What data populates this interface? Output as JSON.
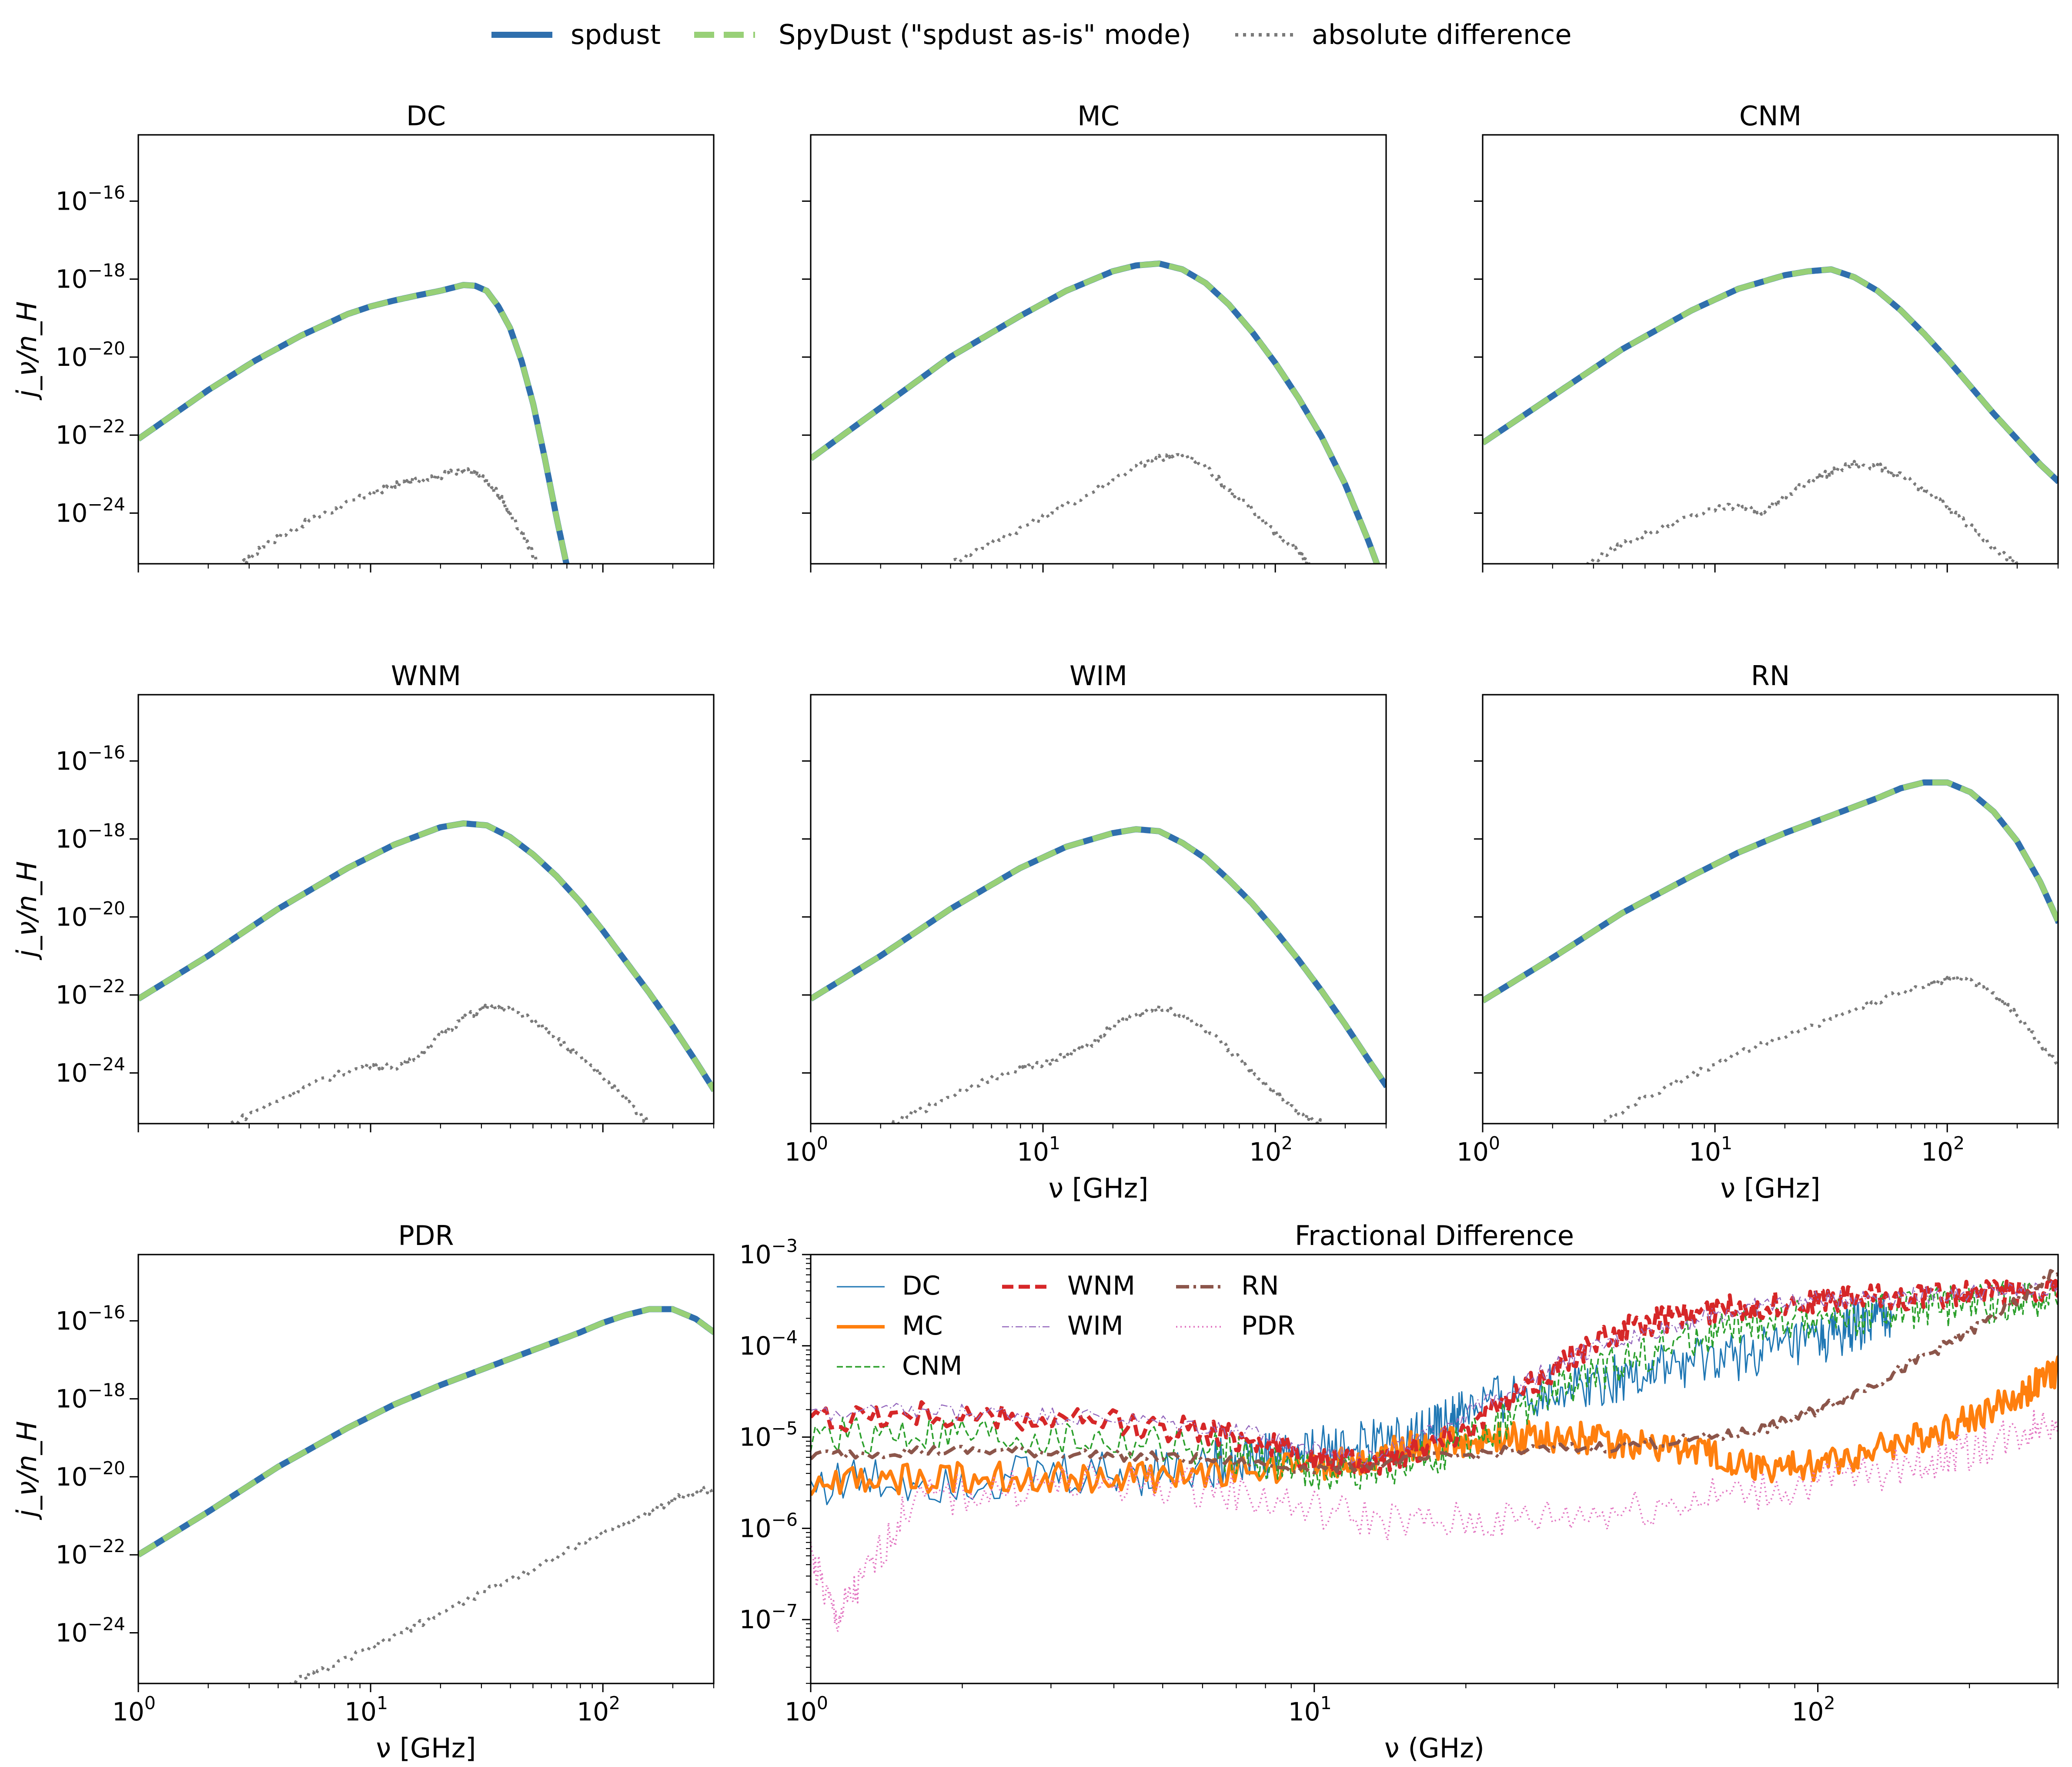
{
  "figure_legend": {
    "entries": [
      {
        "label": "spdust",
        "color": "#2f6fad",
        "style": "solid"
      },
      {
        "label": "SpyDust (\"spdust as-is\" mode)",
        "color": "#98d077",
        "style": "dashed"
      },
      {
        "label": "absolute difference",
        "color": "#7a7a7a",
        "style": "dotted"
      }
    ]
  },
  "colors": {
    "spdust": "#2f6fad",
    "spydust": "#98d077",
    "absdiff": "#7a7a7a",
    "DC": "#1f77b4",
    "MC": "#ff7f0e",
    "CNM": "#2ca02c",
    "WNM": "#d62728",
    "WIM": "#9467bd",
    "RN": "#8c564b",
    "PDR": "#e377c2"
  },
  "chart_data": [
    {
      "id": "DC",
      "type": "line",
      "title": "DC",
      "xlabel": "",
      "ylabel": "j_ν/n_H",
      "xscale": "log",
      "yscale": "log",
      "xlim": [
        1,
        300
      ],
      "ylim": [
        -25.3,
        -14.3
      ],
      "xticklabels_shown": false,
      "yticklabels_shown": true,
      "series": [
        {
          "name": "spdust",
          "log10_x": [
            0,
            0.3,
            0.5,
            0.7,
            0.9,
            1.0,
            1.1,
            1.2,
            1.3,
            1.4,
            1.45,
            1.5,
            1.55,
            1.6,
            1.65,
            1.7,
            1.75,
            1.8,
            1.85
          ],
          "log10_y": [
            -22.1,
            -20.85,
            -20.1,
            -19.45,
            -18.9,
            -18.7,
            -18.55,
            -18.42,
            -18.3,
            -18.15,
            -18.17,
            -18.3,
            -18.7,
            -19.25,
            -20.1,
            -21.2,
            -22.6,
            -24.1,
            -25.5
          ]
        },
        {
          "name": "absolute difference",
          "log10_x": [
            0.45,
            0.55,
            0.7,
            0.85,
            1.0,
            1.1,
            1.2,
            1.3,
            1.38,
            1.45,
            1.5,
            1.55,
            1.6,
            1.66,
            1.72
          ],
          "log10_y": [
            -25.3,
            -24.8,
            -24.3,
            -23.9,
            -23.5,
            -23.3,
            -23.15,
            -23.05,
            -22.9,
            -22.95,
            -23.2,
            -23.5,
            -24.0,
            -24.6,
            -25.3
          ]
        }
      ]
    },
    {
      "id": "MC",
      "type": "line",
      "title": "MC",
      "xlabel": "",
      "ylabel": "",
      "xscale": "log",
      "yscale": "log",
      "xlim": [
        1,
        300
      ],
      "ylim": [
        -25.3,
        -14.3
      ],
      "xticklabels_shown": false,
      "yticklabels_shown": false,
      "series": [
        {
          "name": "spdust",
          "log10_x": [
            0,
            0.3,
            0.6,
            0.9,
            1.1,
            1.3,
            1.4,
            1.5,
            1.6,
            1.7,
            1.8,
            1.9,
            2.0,
            2.1,
            2.2,
            2.3,
            2.4,
            2.45
          ],
          "log10_y": [
            -22.6,
            -21.3,
            -20.0,
            -18.95,
            -18.3,
            -17.8,
            -17.65,
            -17.6,
            -17.75,
            -18.1,
            -18.65,
            -19.35,
            -20.15,
            -21.05,
            -22.05,
            -23.25,
            -24.7,
            -25.5
          ]
        },
        {
          "name": "absolute difference",
          "log10_x": [
            0.6,
            0.8,
            1.0,
            1.2,
            1.4,
            1.5,
            1.6,
            1.7,
            1.8,
            1.9,
            2.0,
            2.1,
            2.15
          ],
          "log10_y": [
            -25.3,
            -24.7,
            -24.1,
            -23.5,
            -22.8,
            -22.6,
            -22.5,
            -22.8,
            -23.4,
            -23.9,
            -24.5,
            -25.0,
            -25.3
          ]
        }
      ]
    },
    {
      "id": "CNM",
      "type": "line",
      "title": "CNM",
      "xlabel": "",
      "ylabel": "",
      "xscale": "log",
      "yscale": "log",
      "xlim": [
        1,
        300
      ],
      "ylim": [
        -25.3,
        -14.3
      ],
      "xticklabels_shown": false,
      "yticklabels_shown": false,
      "series": [
        {
          "name": "spdust",
          "log10_x": [
            0,
            0.3,
            0.6,
            0.9,
            1.1,
            1.3,
            1.4,
            1.5,
            1.6,
            1.7,
            1.8,
            1.9,
            2.0,
            2.1,
            2.2,
            2.3,
            2.4,
            2.48
          ],
          "log10_y": [
            -22.2,
            -21.0,
            -19.8,
            -18.8,
            -18.25,
            -17.9,
            -17.8,
            -17.75,
            -17.95,
            -18.3,
            -18.8,
            -19.4,
            -20.05,
            -20.75,
            -21.45,
            -22.1,
            -22.75,
            -23.2
          ]
        },
        {
          "name": "absolute difference",
          "log10_x": [
            0.45,
            0.6,
            0.8,
            1.0,
            1.1,
            1.2,
            1.3,
            1.4,
            1.5,
            1.6,
            1.7,
            1.8,
            1.9,
            2.0,
            2.1,
            2.2,
            2.3
          ],
          "log10_y": [
            -25.3,
            -24.8,
            -24.3,
            -23.9,
            -23.8,
            -23.95,
            -23.6,
            -23.2,
            -22.95,
            -22.75,
            -22.8,
            -23.05,
            -23.4,
            -23.85,
            -24.35,
            -24.9,
            -25.3
          ]
        }
      ]
    },
    {
      "id": "WNM",
      "type": "line",
      "title": "WNM",
      "xlabel": "",
      "ylabel": "j_ν/n_H",
      "xscale": "log",
      "yscale": "log",
      "xlim": [
        1,
        300
      ],
      "ylim": [
        -25.3,
        -14.3
      ],
      "xticklabels_shown": false,
      "yticklabels_shown": true,
      "series": [
        {
          "name": "spdust",
          "log10_x": [
            0,
            0.3,
            0.6,
            0.9,
            1.1,
            1.3,
            1.4,
            1.5,
            1.6,
            1.7,
            1.8,
            1.9,
            2.0,
            2.1,
            2.2,
            2.3,
            2.4,
            2.48
          ],
          "log10_y": [
            -22.1,
            -21.0,
            -19.8,
            -18.75,
            -18.15,
            -17.7,
            -17.6,
            -17.65,
            -17.95,
            -18.4,
            -18.95,
            -19.6,
            -20.35,
            -21.15,
            -21.95,
            -22.8,
            -23.7,
            -24.45
          ]
        },
        {
          "name": "absolute difference",
          "log10_x": [
            0.4,
            0.6,
            0.8,
            1.0,
            1.1,
            1.2,
            1.3,
            1.4,
            1.5,
            1.6,
            1.7,
            1.8,
            1.9,
            2.0,
            2.1,
            2.2
          ],
          "log10_y": [
            -25.3,
            -24.7,
            -24.15,
            -23.8,
            -23.85,
            -23.6,
            -23.05,
            -22.6,
            -22.3,
            -22.35,
            -22.65,
            -23.1,
            -23.6,
            -24.1,
            -24.7,
            -25.3
          ]
        }
      ]
    },
    {
      "id": "WIM",
      "type": "line",
      "title": "WIM",
      "xlabel": "ν [GHz]",
      "ylabel": "",
      "xscale": "log",
      "yscale": "log",
      "xlim": [
        1,
        300
      ],
      "ylim": [
        -25.3,
        -14.3
      ],
      "xticklabels_shown": true,
      "yticklabels_shown": false,
      "series": [
        {
          "name": "spdust",
          "log10_x": [
            0,
            0.3,
            0.6,
            0.9,
            1.1,
            1.3,
            1.4,
            1.5,
            1.6,
            1.7,
            1.8,
            1.9,
            2.0,
            2.1,
            2.2,
            2.3,
            2.4,
            2.48
          ],
          "log10_y": [
            -22.1,
            -21.0,
            -19.8,
            -18.75,
            -18.2,
            -17.85,
            -17.75,
            -17.8,
            -18.1,
            -18.5,
            -19.05,
            -19.65,
            -20.35,
            -21.1,
            -21.9,
            -22.75,
            -23.65,
            -24.35
          ]
        },
        {
          "name": "absolute difference",
          "log10_x": [
            0.35,
            0.5,
            0.7,
            0.9,
            1.0,
            1.1,
            1.2,
            1.3,
            1.4,
            1.5,
            1.6,
            1.7,
            1.8,
            1.9,
            2.0,
            2.1,
            2.2
          ],
          "log10_y": [
            -25.3,
            -24.9,
            -24.3,
            -23.9,
            -23.75,
            -23.55,
            -23.3,
            -22.8,
            -22.5,
            -22.35,
            -22.5,
            -22.9,
            -23.4,
            -23.95,
            -24.5,
            -25.0,
            -25.3
          ]
        }
      ]
    },
    {
      "id": "RN",
      "type": "line",
      "title": "RN",
      "xlabel": "ν [GHz]",
      "ylabel": "",
      "xscale": "log",
      "yscale": "log",
      "xlim": [
        1,
        300
      ],
      "ylim": [
        -25.3,
        -14.3
      ],
      "xticklabels_shown": true,
      "yticklabels_shown": false,
      "series": [
        {
          "name": "spdust",
          "log10_x": [
            0,
            0.3,
            0.6,
            0.9,
            1.1,
            1.3,
            1.5,
            1.7,
            1.8,
            1.9,
            2.0,
            2.1,
            2.2,
            2.3,
            2.4,
            2.45,
            2.48
          ],
          "log10_y": [
            -22.15,
            -21.05,
            -19.9,
            -18.95,
            -18.35,
            -17.85,
            -17.4,
            -16.95,
            -16.7,
            -16.55,
            -16.55,
            -16.8,
            -17.3,
            -18.05,
            -19.1,
            -19.75,
            -20.15
          ]
        },
        {
          "name": "absolute difference",
          "log10_x": [
            0.5,
            0.7,
            0.9,
            1.1,
            1.3,
            1.5,
            1.7,
            1.9,
            2.0,
            2.1,
            2.2,
            2.3,
            2.4,
            2.48
          ],
          "log10_y": [
            -25.3,
            -24.65,
            -24.05,
            -23.5,
            -23.05,
            -22.6,
            -22.15,
            -21.75,
            -21.6,
            -21.6,
            -21.95,
            -22.5,
            -23.25,
            -23.85
          ]
        }
      ]
    },
    {
      "id": "PDR",
      "type": "line",
      "title": "PDR",
      "xlabel": "ν [GHz]",
      "ylabel": "j_ν/n_H",
      "xscale": "log",
      "yscale": "log",
      "xlim": [
        1,
        300
      ],
      "ylim": [
        -25.3,
        -14.3
      ],
      "xticklabels_shown": true,
      "yticklabels_shown": true,
      "series": [
        {
          "name": "spdust",
          "log10_x": [
            0,
            0.3,
            0.6,
            0.9,
            1.1,
            1.3,
            1.5,
            1.7,
            1.9,
            2.0,
            2.1,
            2.2,
            2.3,
            2.4,
            2.48
          ],
          "log10_y": [
            -22.0,
            -20.9,
            -19.75,
            -18.75,
            -18.15,
            -17.65,
            -17.2,
            -16.75,
            -16.3,
            -16.05,
            -15.85,
            -15.7,
            -15.7,
            -15.95,
            -16.3
          ]
        },
        {
          "name": "absolute difference",
          "log10_x": [
            0.65,
            0.8,
            1.0,
            1.2,
            1.4,
            1.6,
            1.8,
            2.0,
            2.2,
            2.3,
            2.4,
            2.48
          ],
          "log10_y": [
            -25.3,
            -24.95,
            -24.4,
            -23.8,
            -23.2,
            -22.65,
            -22.05,
            -21.45,
            -20.9,
            -20.6,
            -20.35,
            -20.35
          ]
        }
      ]
    },
    {
      "id": "fractional",
      "type": "line",
      "title": "Fractional Difference",
      "xlabel": "ν (GHz)",
      "ylabel": "",
      "xscale": "log",
      "yscale": "log",
      "xlim": [
        1,
        300
      ],
      "ylim": [
        -7.7,
        -3.0
      ],
      "series": [
        {
          "name": "DC",
          "log10_x": [
            0,
            0.3,
            0.6,
            0.8,
            0.9,
            1.0,
            1.1,
            1.2,
            1.25,
            1.3,
            1.4,
            1.5,
            1.6,
            1.7,
            1.8,
            1.9,
            2.0,
            2.05,
            2.1,
            2.15
          ],
          "log10_y": [
            -5.5,
            -5.45,
            -5.4,
            -5.3,
            -5.2,
            -5.15,
            -5.1,
            -5.0,
            -4.9,
            -4.7,
            -4.55,
            -4.45,
            -4.35,
            -4.25,
            -4.15,
            -4.05,
            -3.95,
            -3.85,
            -3.75,
            -3.65
          ]
        },
        {
          "name": "MC",
          "log10_x": [
            0,
            0.2,
            0.4,
            0.6,
            0.8,
            1.0,
            1.1,
            1.2,
            1.3,
            1.4,
            1.5,
            1.6,
            1.7,
            1.8,
            1.9,
            2.0,
            2.1,
            2.2,
            2.3,
            2.4,
            2.48
          ],
          "log10_y": [
            -5.5,
            -5.45,
            -5.45,
            -5.45,
            -5.4,
            -5.3,
            -5.25,
            -5.1,
            -5.05,
            -5.0,
            -5.0,
            -5.05,
            -5.1,
            -5.2,
            -5.35,
            -5.3,
            -5.15,
            -5.0,
            -4.8,
            -4.55,
            -4.25
          ]
        },
        {
          "name": "CNM",
          "log10_x": [
            0,
            0.2,
            0.4,
            0.6,
            0.8,
            0.9,
            1.0,
            1.1,
            1.2,
            1.3,
            1.4,
            1.5,
            1.6,
            1.7,
            1.8,
            1.9,
            2.0,
            2.1,
            2.2,
            2.3,
            2.4,
            2.48
          ],
          "log10_y": [
            -5.0,
            -4.95,
            -5.0,
            -5.05,
            -5.15,
            -5.25,
            -5.4,
            -5.35,
            -5.3,
            -5.05,
            -4.75,
            -4.45,
            -4.2,
            -4.0,
            -3.85,
            -3.75,
            -3.7,
            -3.65,
            -3.6,
            -3.55,
            -3.5,
            -3.45
          ]
        },
        {
          "name": "WNM",
          "log10_x": [
            0,
            0.2,
            0.4,
            0.6,
            0.8,
            0.9,
            1.0,
            1.1,
            1.2,
            1.3,
            1.4,
            1.5,
            1.6,
            1.7,
            1.8,
            1.9,
            2.0,
            2.1,
            2.2,
            2.3,
            2.4,
            2.48
          ],
          "log10_y": [
            -4.8,
            -4.75,
            -4.8,
            -4.85,
            -4.95,
            -5.05,
            -5.25,
            -5.3,
            -5.15,
            -4.9,
            -4.55,
            -4.15,
            -3.85,
            -3.7,
            -3.6,
            -3.55,
            -3.5,
            -3.47,
            -3.45,
            -3.42,
            -3.4,
            -3.38
          ]
        },
        {
          "name": "WIM",
          "log10_x": [
            0,
            0.2,
            0.4,
            0.6,
            0.8,
            0.9,
            1.0,
            1.1,
            1.2,
            1.3,
            1.4,
            1.5,
            1.6,
            1.7,
            1.8,
            1.9,
            2.0,
            2.1,
            2.2,
            2.3,
            2.4,
            2.48
          ],
          "log10_y": [
            -4.75,
            -4.72,
            -4.75,
            -4.8,
            -4.9,
            -5.0,
            -5.15,
            -5.2,
            -5.05,
            -4.75,
            -4.45,
            -4.15,
            -3.95,
            -3.8,
            -3.65,
            -3.55,
            -3.5,
            -3.47,
            -3.45,
            -3.42,
            -3.4,
            -3.38
          ]
        },
        {
          "name": "RN",
          "log10_x": [
            0,
            0.2,
            0.4,
            0.6,
            0.8,
            1.0,
            1.2,
            1.4,
            1.6,
            1.8,
            1.9,
            2.0,
            2.1,
            2.2,
            2.3,
            2.4,
            2.48
          ],
          "log10_y": [
            -5.2,
            -5.15,
            -5.15,
            -5.2,
            -5.25,
            -5.35,
            -5.25,
            -5.15,
            -5.1,
            -5.0,
            -4.9,
            -4.7,
            -4.45,
            -4.15,
            -3.85,
            -3.5,
            -3.15
          ]
        },
        {
          "name": "PDR",
          "log10_x": [
            0,
            0.05,
            0.1,
            0.2,
            0.4,
            0.6,
            0.8,
            1.0,
            1.2,
            1.4,
            1.6,
            1.8,
            2.0,
            2.2,
            2.3,
            2.4,
            2.48
          ],
          "log10_y": [
            -6.3,
            -7.0,
            -6.6,
            -5.7,
            -5.55,
            -5.5,
            -5.55,
            -5.8,
            -5.95,
            -5.9,
            -5.8,
            -5.65,
            -5.5,
            -5.3,
            -5.15,
            -4.95,
            -4.75
          ]
        }
      ]
    }
  ],
  "fraction_legend": {
    "entries": [
      {
        "label": "DC",
        "style": "solid-thin"
      },
      {
        "label": "MC",
        "style": "solid-thick"
      },
      {
        "label": "CNM",
        "style": "dashed-thin"
      },
      {
        "label": "WNM",
        "style": "dashed-thick"
      },
      {
        "label": "WIM",
        "style": "dashdot-thin"
      },
      {
        "label": "RN",
        "style": "dashdot-thick"
      },
      {
        "label": "PDR",
        "style": "dotted"
      }
    ]
  }
}
